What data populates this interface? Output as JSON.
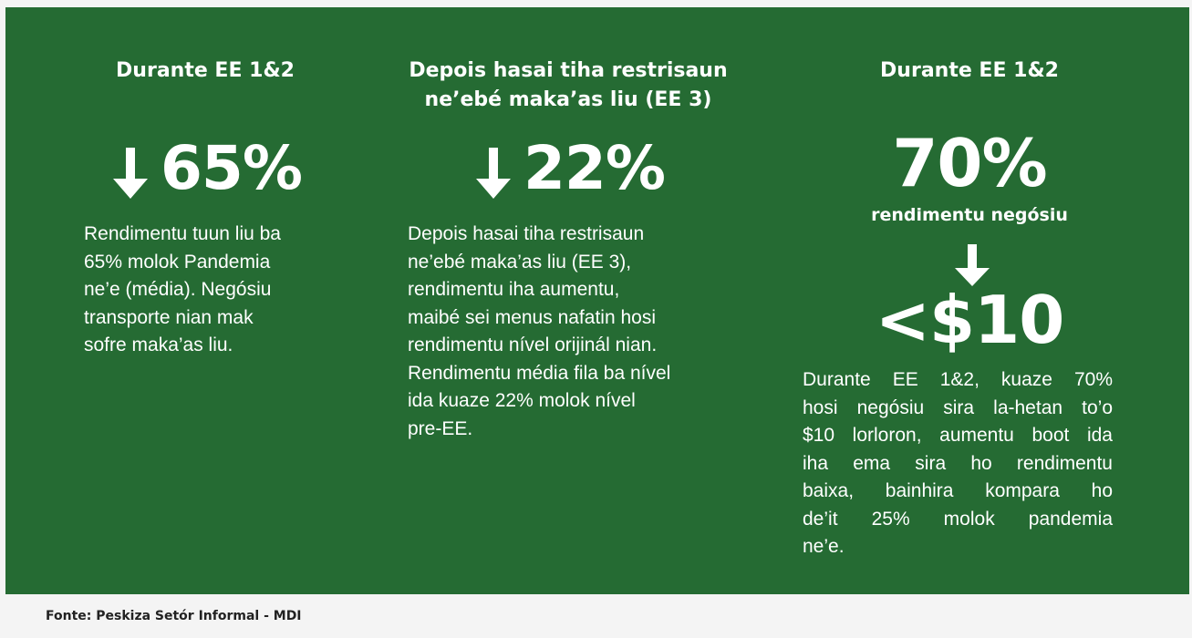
{
  "columns": [
    {
      "heading": [
        "Durante EE 1&2"
      ],
      "stat": "65%",
      "body": [
        "Rendimentu tuun liu ba",
        "65% molok Pandemia",
        "ne’e (média). Negósiu",
        "transporte nian mak",
        "sofre maka’as liu."
      ]
    },
    {
      "heading": [
        "Depois hasai tiha restrisaun",
        "ne’ebé maka’as liu (EE 3)"
      ],
      "stat": "22%",
      "body": [
        "Depois hasai tiha restrisaun",
        "ne’ebé maka’as liu (EE 3),",
        "rendimentu iha aumentu,",
        "maibé sei menus nafatin hosi",
        "rendimentu nível orijinál nian.",
        "Rendimentu média fila ba nível",
        "ida kuaze 22% molok nível",
        "pre-EE."
      ]
    },
    {
      "heading": [
        "Durante EE 1&2"
      ],
      "stat": "70%",
      "stat_caption": "rendimentu negósiu",
      "stat2": "<$10",
      "body": [
        "Durante EE 1&2, kuaze 70%",
        "hosi negósiu sira la-hetan to’o",
        "$10 lorloron, aumentu boot ida",
        "iha ema sira ho rendimentu",
        "baixa, bainhira kompara ho",
        "de’it 25% molok pandemia",
        "ne’e."
      ]
    }
  ],
  "source": "Fonte: Peskiza Setór Informal - MDI"
}
